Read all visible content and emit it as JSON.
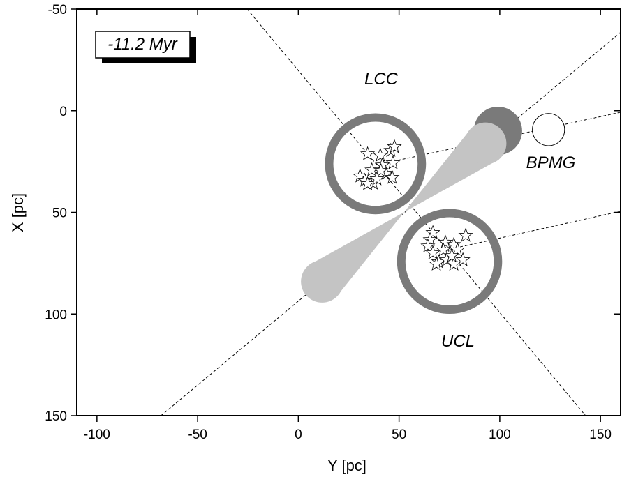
{
  "chart_data": {
    "type": "scatter",
    "x_label": "Y [pc]",
    "y_label": "X [pc]",
    "xlim": [
      -110,
      160
    ],
    "ylim": [
      -50,
      150
    ],
    "y_inverted": true,
    "xticks": [
      -100,
      -50,
      0,
      50,
      100,
      150
    ],
    "yticks": [
      -50,
      0,
      50,
      100,
      150
    ],
    "time_label": "-11.2 Myr",
    "groups": [
      {
        "label": "LCC",
        "x": [
          34.4,
          40.7,
          45.9,
          47.7,
          47.0,
          41.7,
          36.5,
          43.5,
          30.6,
          33.0,
          37.2,
          46.6,
          41.0,
          34.4,
          39.0
        ],
        "y": [
          21.3,
          22.0,
          19.6,
          17.8,
          25.7,
          26.8,
          29.2,
          30.9,
          32.2,
          34.3,
          35.7,
          32.9,
          29.5,
          36.0,
          33.6
        ],
        "ring": {
          "x": 38.3,
          "y": 26.1,
          "r": 23
        }
      },
      {
        "label": "UCL",
        "x": [
          66.8,
          65.4,
          73.0,
          64.3,
          77.2,
          83.1,
          66.8,
          72.0,
          79.0,
          69.6,
          73.7,
          81.7,
          77.2,
          68.5,
          76.2
        ],
        "y": [
          60.0,
          63.5,
          64.8,
          66.6,
          65.9,
          61.4,
          70.0,
          68.6,
          68.6,
          74.4,
          73.4,
          73.4,
          75.5,
          75.5,
          71.4
        ],
        "ring": {
          "x": 75.1,
          "y": 74.1,
          "r": 24
        }
      }
    ],
    "bpmg": {
      "label": "BPMG",
      "x": 124.2,
      "y": 9.3,
      "r": 8
    },
    "dark_circle": {
      "x": 99.1,
      "y": 9.9,
      "r": 12
    },
    "cone": [
      {
        "x": 92.9,
        "y": 16.1,
        "r": 10.4
      },
      {
        "x": 11.8,
        "y": 84.0,
        "r": 10.5
      }
    ],
    "dashed_lines": [
      {
        "x": [
          -25.4,
          142.6
        ],
        "y": [
          -50,
          150
        ]
      },
      {
        "x": [
          -68.2,
          160.3
        ],
        "y": [
          150,
          -38.8
        ]
      },
      {
        "x": [
          49.4,
          160.3
        ],
        "y": [
          24.4,
          0.7
        ]
      },
      {
        "x": [
          80.3,
          160.3
        ],
        "y": [
          67.0,
          49.4
        ]
      }
    ]
  }
}
